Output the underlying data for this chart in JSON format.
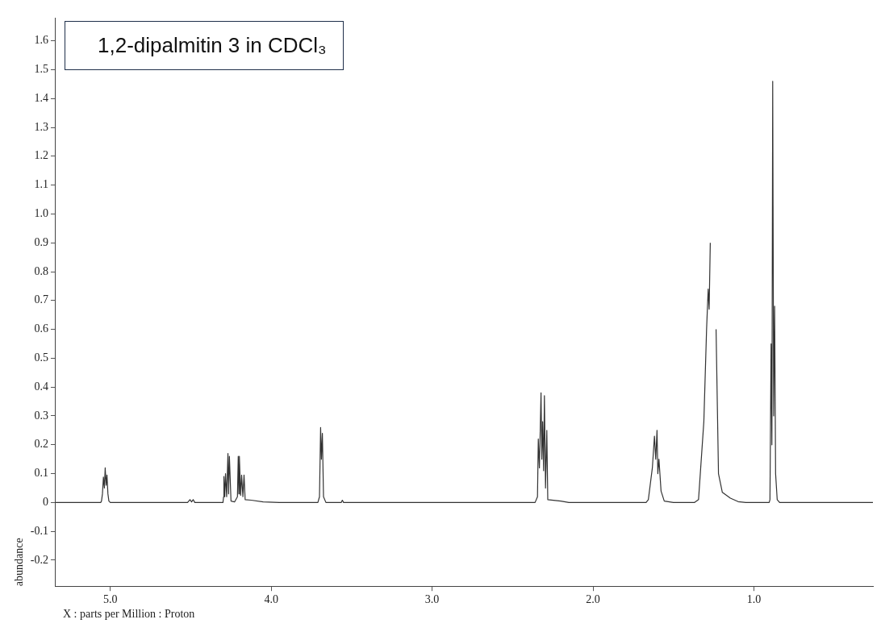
{
  "chart_data": {
    "type": "line",
    "xlabel": "X : parts per Million : Proton",
    "ylabel": "abundance",
    "annotations": [
      "1,2-dipalmitin 3 in CDCl₃"
    ],
    "color": "#333333",
    "marker": "none",
    "line_style": "solid",
    "xlim": [
      5.34,
      0.26
    ],
    "xticks": [
      {
        "value": 5.0,
        "label": "5.0"
      },
      {
        "value": 4.0,
        "label": "4.0"
      },
      {
        "value": 3.0,
        "label": "3.0"
      },
      {
        "value": 2.0,
        "label": "2.0"
      },
      {
        "value": 1.0,
        "label": "1.0"
      }
    ],
    "ylim": [
      -0.29,
      1.68
    ],
    "yticks": [
      -0.2,
      -0.1,
      0,
      0.1,
      0.2,
      0.3,
      0.4,
      0.5,
      0.6,
      0.7,
      0.8,
      0.9,
      {
        "value": 1.0,
        "label": "1.0"
      },
      1.1,
      1.2,
      1.3,
      1.4,
      1.5,
      1.6
    ],
    "x": [
      5.34,
      5.06,
      5.055,
      5.049,
      5.043,
      5.037,
      5.032,
      5.026,
      5.021,
      5.015,
      5.009,
      5.0,
      4.52,
      4.505,
      4.495,
      4.485,
      4.475,
      4.3,
      4.296,
      4.294,
      4.289,
      4.284,
      4.277,
      4.269,
      4.265,
      4.26,
      4.25,
      4.228,
      4.21,
      4.205,
      4.201,
      4.198,
      4.19,
      4.184,
      4.176,
      4.169,
      4.162,
      4.124,
      4.05,
      3.95,
      3.71,
      3.7,
      3.693,
      3.688,
      3.682,
      3.675,
      3.66,
      3.565,
      3.558,
      3.55,
      2.36,
      2.345,
      2.34,
      2.333,
      2.323,
      2.318,
      2.313,
      2.307,
      2.302,
      2.295,
      2.287,
      2.281,
      2.2,
      2.15,
      1.67,
      1.656,
      1.631,
      1.618,
      1.61,
      1.602,
      1.597,
      1.59,
      1.577,
      1.557,
      1.5,
      1.37,
      1.344,
      1.311,
      1.294,
      1.284,
      1.278,
      1.271,
      1.262,
      1.255,
      1.248,
      1.242,
      1.235,
      1.22,
      1.196,
      1.146,
      1.098,
      1.05,
      0.905,
      0.9,
      0.893,
      0.888,
      0.883,
      0.877,
      0.871,
      0.865,
      0.855,
      0.84,
      0.26
    ],
    "values": [
      0,
      0,
      0.005,
      0.03,
      0.088,
      0.05,
      0.12,
      0.06,
      0.095,
      0.03,
      0.005,
      0,
      0,
      0.01,
      0.002,
      0.01,
      0,
      0,
      0.02,
      0.09,
      0.02,
      0.1,
      0.02,
      0.17,
      0.03,
      0.16,
      0.005,
      0.002,
      0.02,
      0.16,
      0.03,
      0.16,
      0.025,
      0.095,
      0.02,
      0.095,
      0.01,
      0.008,
      0.002,
      0,
      0,
      0.02,
      0.26,
      0.15,
      0.24,
      0.02,
      0,
      0,
      0.008,
      0,
      0,
      0.02,
      0.22,
      0.12,
      0.38,
      0.15,
      0.28,
      0.11,
      0.37,
      0.05,
      0.25,
      0.01,
      0.005,
      0,
      0,
      0.01,
      0.12,
      0.23,
      0.15,
      0.25,
      0.1,
      0.15,
      0.04,
      0.005,
      0,
      0,
      0.01,
      0.28,
      0.6,
      0.74,
      0.67,
      0.9,
      null,
      null,
      null,
      null,
      0.6,
      0.1,
      0.035,
      0.015,
      0.003,
      0,
      0,
      0.01,
      0.55,
      0.2,
      1.46,
      0.3,
      0.68,
      0.1,
      0.01,
      0,
      0
    ]
  }
}
